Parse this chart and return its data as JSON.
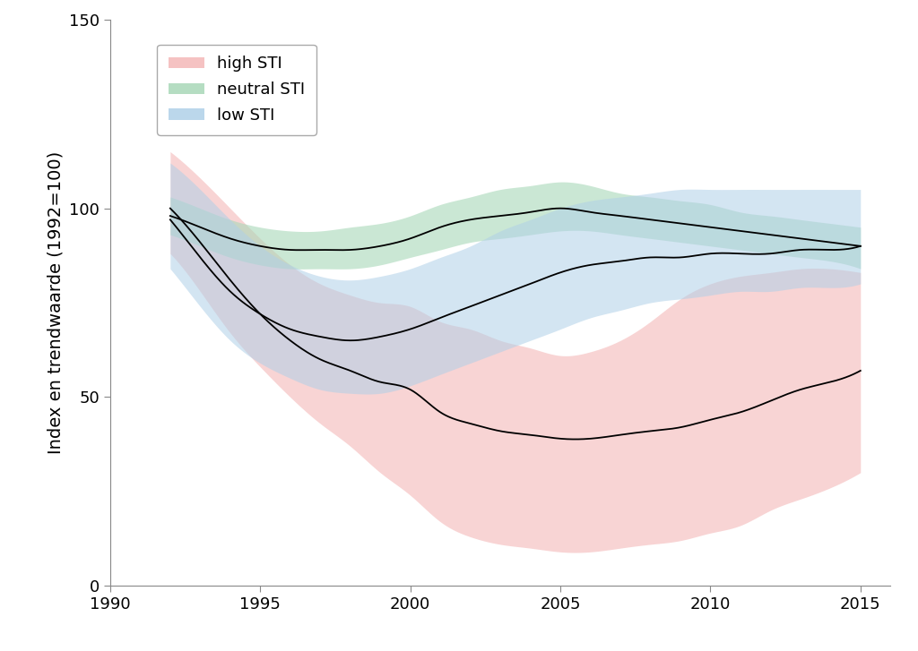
{
  "title": "",
  "ylabel": "Index en trendwaarde (1992=100)",
  "xlabel": "",
  "xlim": [
    1990,
    2016
  ],
  "ylim": [
    0,
    150
  ],
  "yticks": [
    0,
    50,
    100,
    150
  ],
  "xticks": [
    1990,
    1995,
    2000,
    2005,
    2010,
    2015
  ],
  "background_color": "#ffffff",
  "series": {
    "high_STI": {
      "label": "high STI",
      "color_fill": "#f4b8b8",
      "color_line": "#000000",
      "alpha_fill": 0.6,
      "x": [
        1992,
        1993,
        1994,
        1995,
        1996,
        1997,
        1998,
        1999,
        2000,
        2001,
        2002,
        2003,
        2004,
        2005,
        2006,
        2007,
        2008,
        2009,
        2010,
        2011,
        2012,
        2013,
        2014,
        2015
      ],
      "y_mid": [
        100,
        91,
        81,
        72,
        65,
        60,
        57,
        54,
        52,
        46,
        43,
        41,
        40,
        39,
        39,
        40,
        41,
        42,
        44,
        46,
        49,
        52,
        54,
        57
      ],
      "y_lo": [
        88,
        78,
        67,
        58,
        50,
        43,
        37,
        30,
        24,
        17,
        13,
        11,
        10,
        9,
        9,
        10,
        11,
        12,
        14,
        16,
        20,
        23,
        26,
        30
      ],
      "y_hi": [
        115,
        108,
        100,
        92,
        85,
        80,
        77,
        75,
        74,
        70,
        68,
        65,
        63,
        61,
        62,
        65,
        70,
        76,
        80,
        82,
        83,
        84,
        84,
        83
      ]
    },
    "neutral_STI": {
      "label": "neutral STI",
      "color_fill": "#a8d8b8",
      "color_line": "#000000",
      "alpha_fill": 0.6,
      "x": [
        1992,
        1993,
        1994,
        1995,
        1996,
        1997,
        1998,
        1999,
        2000,
        2001,
        2002,
        2003,
        2004,
        2005,
        2006,
        2007,
        2008,
        2009,
        2010,
        2011,
        2012,
        2013,
        2014,
        2015
      ],
      "y_mid": [
        98,
        95,
        92,
        90,
        89,
        89,
        89,
        90,
        92,
        95,
        97,
        98,
        99,
        100,
        99,
        98,
        97,
        96,
        95,
        94,
        93,
        92,
        91,
        90
      ],
      "y_lo": [
        93,
        90,
        87,
        85,
        84,
        84,
        84,
        85,
        87,
        89,
        91,
        92,
        93,
        94,
        94,
        93,
        92,
        91,
        90,
        89,
        88,
        87,
        86,
        84
      ],
      "y_hi": [
        103,
        100,
        97,
        95,
        94,
        94,
        95,
        96,
        98,
        101,
        103,
        105,
        106,
        107,
        106,
        104,
        103,
        102,
        101,
        99,
        98,
        97,
        96,
        95
      ]
    },
    "low_STI": {
      "label": "low STI",
      "color_fill": "#b0d0e8",
      "color_line": "#000000",
      "alpha_fill": 0.55,
      "x": [
        1992,
        1993,
        1994,
        1995,
        1996,
        1997,
        1998,
        1999,
        2000,
        2001,
        2002,
        2003,
        2004,
        2005,
        2006,
        2007,
        2008,
        2009,
        2010,
        2011,
        2012,
        2013,
        2014,
        2015
      ],
      "y_mid": [
        97,
        87,
        78,
        72,
        68,
        66,
        65,
        66,
        68,
        71,
        74,
        77,
        80,
        83,
        85,
        86,
        87,
        87,
        88,
        88,
        88,
        89,
        89,
        90
      ],
      "y_lo": [
        84,
        74,
        65,
        59,
        55,
        52,
        51,
        51,
        53,
        56,
        59,
        62,
        65,
        68,
        71,
        73,
        75,
        76,
        77,
        78,
        78,
        79,
        79,
        80
      ],
      "y_hi": [
        112,
        105,
        97,
        90,
        85,
        82,
        81,
        82,
        84,
        87,
        90,
        94,
        97,
        100,
        102,
        103,
        104,
        105,
        105,
        105,
        105,
        105,
        105,
        105
      ]
    }
  },
  "fontsize_axis_label": 14,
  "fontsize_tick": 13,
  "fontsize_legend": 13
}
